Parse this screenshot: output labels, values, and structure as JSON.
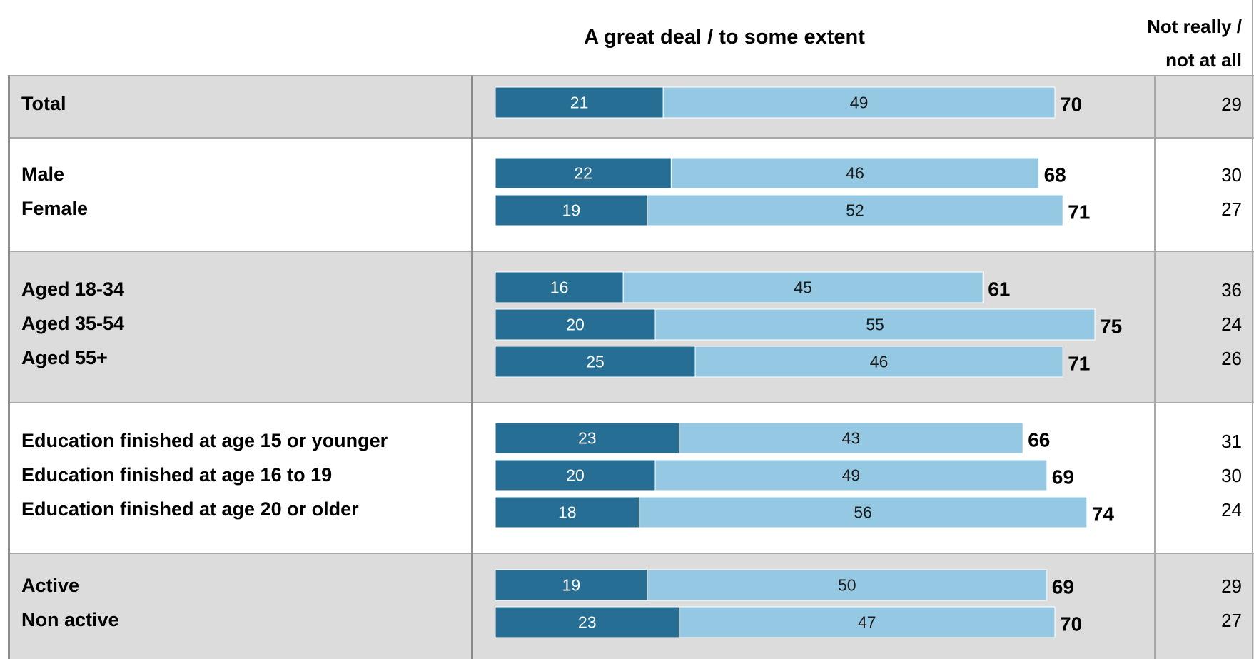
{
  "chart_data": {
    "type": "bar",
    "stacked": true,
    "orientation": "horizontal",
    "header_main": "A great deal / to some extent",
    "header_right": [
      "Not really /",
      "not at all"
    ],
    "colors": {
      "great_deal": "#266e93",
      "some_extent": "#95c9e3",
      "shaded_band": "#dcdcdc"
    },
    "groups": [
      {
        "shaded": true,
        "rows": [
          {
            "label": "Total",
            "great_deal": 21,
            "some_extent": 49,
            "total": 70,
            "not_really": 29
          }
        ]
      },
      {
        "shaded": false,
        "rows": [
          {
            "label": "Male",
            "great_deal": 22,
            "some_extent": 46,
            "total": 68,
            "not_really": 30
          },
          {
            "label": "Female",
            "great_deal": 19,
            "some_extent": 52,
            "total": 71,
            "not_really": 27
          }
        ]
      },
      {
        "shaded": true,
        "rows": [
          {
            "label": "Aged 18-34",
            "great_deal": 16,
            "some_extent": 45,
            "total": 61,
            "not_really": 36
          },
          {
            "label": "Aged 35-54",
            "great_deal": 20,
            "some_extent": 55,
            "total": 75,
            "not_really": 24
          },
          {
            "label": "Aged 55+",
            "great_deal": 25,
            "some_extent": 46,
            "total": 71,
            "not_really": 26
          }
        ]
      },
      {
        "shaded": false,
        "rows": [
          {
            "label": "Education finished at age 15 or younger",
            "great_deal": 23,
            "some_extent": 43,
            "total": 66,
            "not_really": 31
          },
          {
            "label": "Education finished at age 16 to 19",
            "great_deal": 20,
            "some_extent": 49,
            "total": 69,
            "not_really": 30
          },
          {
            "label": "Education finished at age 20 or older",
            "great_deal": 18,
            "some_extent": 56,
            "total": 74,
            "not_really": 24
          }
        ]
      },
      {
        "shaded": true,
        "rows": [
          {
            "label": "Active",
            "great_deal": 19,
            "some_extent": 50,
            "total": 69,
            "not_really": 29
          },
          {
            "label": "Non active",
            "great_deal": 23,
            "some_extent": 47,
            "total": 70,
            "not_really": 27
          }
        ]
      }
    ]
  }
}
